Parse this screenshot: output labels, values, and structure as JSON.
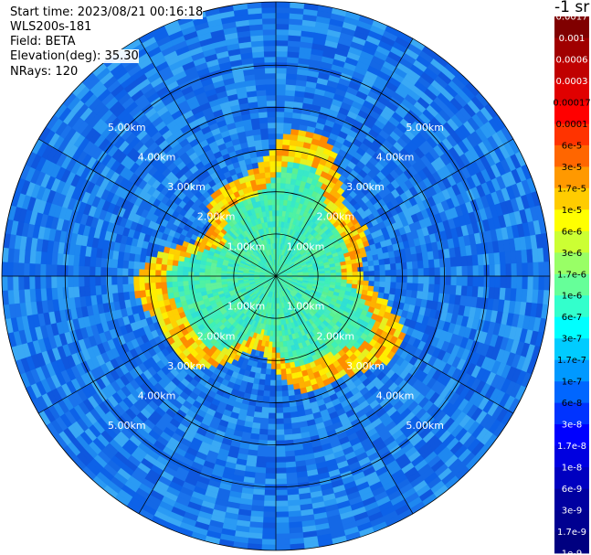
{
  "info": {
    "start_time": "Start time: 2023/08/21 00:16:18",
    "instrument": "WLS200s-181",
    "field": "Field: BETA",
    "elevation": "Elevation(deg): 35.30",
    "nrays": "NRays: 120"
  },
  "colorbar": {
    "unit": "-1 sr",
    "labels": [
      "0.0017",
      "0.001",
      "0.0006",
      "0.0003",
      "0.00017",
      "0.0001",
      "6e-5",
      "3e-5",
      "1.7e-5",
      "1e-5",
      "6e-6",
      "3e-6",
      "1.7e-6",
      "1e-6",
      "6e-7",
      "3e-7",
      "1.7e-7",
      "1e-7",
      "6e-8",
      "3e-8",
      "1.7e-8",
      "1e-8",
      "6e-9",
      "3e-9",
      "1.7e-9",
      "1e-9"
    ],
    "colors": [
      "#800000",
      "#a00000",
      "#c00000",
      "#e00000",
      "#ff0000",
      "#ff3300",
      "#ff6600",
      "#ff9900",
      "#ffcc00",
      "#ffff00",
      "#ccff33",
      "#99ff66",
      "#66ff99",
      "#33ffcc",
      "#00ffff",
      "#00ccff",
      "#0099ff",
      "#0066ff",
      "#0033ff",
      "#0000ff",
      "#0000e0",
      "#0000c0",
      "#0000a0",
      "#000090",
      "#000080"
    ]
  },
  "chart_data": {
    "type": "heatmap",
    "projection": "polar (PPI scan)",
    "field": "BETA",
    "range_rings_km": [
      1,
      2,
      3,
      4,
      5
    ],
    "ring_labels": [
      "1.00km",
      "2.00km",
      "3.00km",
      "4.00km",
      "5.00km"
    ],
    "radial_lines_deg": [
      0,
      30,
      60,
      90,
      120,
      150,
      180,
      210,
      240,
      270,
      300,
      330
    ],
    "max_range_km": 6.5,
    "nrays": 120,
    "pattern": [
      {
        "range_km": [
          0.0,
          2.3
        ],
        "approx_value": "1.7e-6",
        "description_color": "cyan-green"
      },
      {
        "range_km": [
          2.3,
          2.9
        ],
        "approx_value": "1e-5",
        "description_color": "yellow-orange"
      },
      {
        "range_km": [
          2.9,
          6.5
        ],
        "approx_value": "1e-7",
        "description_color": "blue"
      }
    ]
  }
}
